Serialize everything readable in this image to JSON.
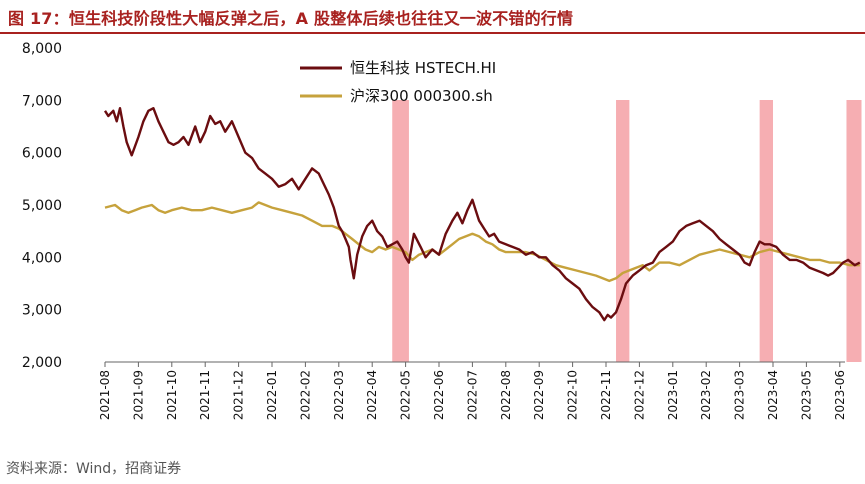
{
  "figure": {
    "title": "图 17：恒生科技阶段性大幅反弹之后，A 股整体后续也往往又一波不错的行情",
    "source": "资料来源：Wind，招商证券"
  },
  "colors": {
    "title": "#a8211f",
    "hstech": "#6b0d10",
    "csi300": "#c6a23c",
    "band": "#f4a0a4"
  },
  "chart_data": {
    "type": "line",
    "title": "",
    "xlabel": "",
    "ylabel": "",
    "ylim": [
      2000,
      8000
    ],
    "yticks": [
      2000,
      3000,
      4000,
      5000,
      6000,
      7000,
      8000
    ],
    "ytick_labels": [
      "2,000",
      "3,000",
      "4,000",
      "5,000",
      "6,000",
      "7,000",
      "8,000"
    ],
    "xlim": [
      0,
      22.7
    ],
    "xtick_labels": [
      "2021-08",
      "2021-09",
      "2021-10",
      "2021-11",
      "2021-12",
      "2022-01",
      "2022-02",
      "2022-03",
      "2022-04",
      "2022-05",
      "2022-06",
      "2022-07",
      "2022-08",
      "2022-09",
      "2022-10",
      "2022-11",
      "2022-12",
      "2023-01",
      "2023-02",
      "2023-03",
      "2023-04",
      "2023-05",
      "2023-06"
    ],
    "legend": {
      "position": "top-center"
    },
    "series": [
      {
        "name": "恒生科技 HSTECH.HI",
        "x": [
          0,
          0.1,
          0.25,
          0.35,
          0.45,
          0.55,
          0.65,
          0.8,
          1.0,
          1.15,
          1.3,
          1.45,
          1.6,
          1.75,
          1.9,
          2.05,
          2.2,
          2.35,
          2.5,
          2.7,
          2.85,
          3.0,
          3.15,
          3.3,
          3.45,
          3.6,
          3.8,
          4.0,
          4.2,
          4.4,
          4.6,
          4.8,
          5.0,
          5.2,
          5.4,
          5.6,
          5.8,
          6.0,
          6.2,
          6.4,
          6.55,
          6.7,
          6.85,
          7.0,
          7.1,
          7.2,
          7.3,
          7.35,
          7.45,
          7.55,
          7.7,
          7.85,
          8.0,
          8.15,
          8.3,
          8.45,
          8.6,
          8.75,
          8.9,
          9.0,
          9.1,
          9.25,
          9.45,
          9.6,
          9.8,
          10.0,
          10.2,
          10.4,
          10.55,
          10.7,
          10.85,
          11.0,
          11.1,
          11.2,
          11.35,
          11.5,
          11.65,
          11.8,
          12.0,
          12.2,
          12.4,
          12.6,
          12.8,
          13.0,
          13.2,
          13.4,
          13.6,
          13.8,
          14.0,
          14.2,
          14.4,
          14.6,
          14.8,
          14.95,
          15.05,
          15.15,
          15.3,
          15.45,
          15.6,
          15.8,
          16.0,
          16.2,
          16.4,
          16.6,
          16.8,
          17.0,
          17.2,
          17.4,
          17.6,
          17.8,
          18.0,
          18.2,
          18.4,
          18.6,
          18.8,
          19.0,
          19.15,
          19.3,
          19.45,
          19.6,
          19.75,
          19.9,
          20.1,
          20.3,
          20.5,
          20.7,
          20.9,
          21.1,
          21.3,
          21.5,
          21.65,
          21.8,
          21.95,
          22.1,
          22.25,
          22.45,
          22.6
        ],
        "values": [
          6800,
          6700,
          6800,
          6600,
          6850,
          6500,
          6200,
          5950,
          6300,
          6600,
          6800,
          6850,
          6600,
          6400,
          6200,
          6150,
          6200,
          6300,
          6150,
          6500,
          6200,
          6400,
          6700,
          6550,
          6600,
          6400,
          6600,
          6300,
          6000,
          5900,
          5700,
          5600,
          5500,
          5350,
          5400,
          5500,
          5300,
          5500,
          5700,
          5600,
          5400,
          5200,
          4950,
          4600,
          4500,
          4350,
          4200,
          3950,
          3600,
          4050,
          4400,
          4600,
          4700,
          4500,
          4400,
          4200,
          4250,
          4300,
          4150,
          4000,
          3900,
          4450,
          4200,
          4000,
          4150,
          4050,
          4450,
          4700,
          4850,
          4650,
          4900,
          5100,
          4900,
          4700,
          4550,
          4400,
          4450,
          4300,
          4250,
          4200,
          4150,
          4050,
          4100,
          4000,
          4000,
          3850,
          3750,
          3600,
          3500,
          3400,
          3200,
          3050,
          2950,
          2800,
          2900,
          2850,
          2950,
          3200,
          3500,
          3650,
          3750,
          3850,
          3900,
          4100,
          4200,
          4300,
          4500,
          4600,
          4650,
          4700,
          4600,
          4500,
          4350,
          4250,
          4150,
          4050,
          3900,
          3850,
          4100,
          4300,
          4250,
          4250,
          4200,
          4050,
          3950,
          3950,
          3900,
          3800,
          3750,
          3700,
          3650,
          3700,
          3800,
          3900,
          3950,
          3850,
          3900
        ]
      },
      {
        "name": "沪深300 000300.sh",
        "x": [
          0,
          0.3,
          0.5,
          0.7,
          0.9,
          1.1,
          1.4,
          1.6,
          1.8,
          2.0,
          2.3,
          2.6,
          2.9,
          3.2,
          3.5,
          3.8,
          4.1,
          4.4,
          4.6,
          4.8,
          5.0,
          5.3,
          5.6,
          5.9,
          6.2,
          6.5,
          6.8,
          7.0,
          7.2,
          7.4,
          7.6,
          7.8,
          8.0,
          8.2,
          8.4,
          8.6,
          8.8,
          9.0,
          9.2,
          9.4,
          9.6,
          9.8,
          10.0,
          10.2,
          10.4,
          10.6,
          10.8,
          11.0,
          11.2,
          11.4,
          11.6,
          11.8,
          12.0,
          12.3,
          12.6,
          12.9,
          13.2,
          13.5,
          13.8,
          14.1,
          14.4,
          14.7,
          14.9,
          15.1,
          15.3,
          15.5,
          15.7,
          15.9,
          16.1,
          16.3,
          16.6,
          16.9,
          17.2,
          17.5,
          17.8,
          18.1,
          18.4,
          18.7,
          19.0,
          19.3,
          19.6,
          19.9,
          20.2,
          20.5,
          20.8,
          21.1,
          21.4,
          21.7,
          22.0,
          22.3,
          22.6
        ],
        "values": [
          4950,
          5000,
          4900,
          4850,
          4900,
          4950,
          5000,
          4900,
          4850,
          4900,
          4950,
          4900,
          4900,
          4950,
          4900,
          4850,
          4900,
          4950,
          5050,
          5000,
          4950,
          4900,
          4850,
          4800,
          4700,
          4600,
          4600,
          4550,
          4450,
          4350,
          4250,
          4150,
          4100,
          4200,
          4150,
          4200,
          4150,
          4100,
          3950,
          4050,
          4100,
          4150,
          4050,
          4150,
          4250,
          4350,
          4400,
          4450,
          4400,
          4300,
          4250,
          4150,
          4100,
          4100,
          4100,
          4050,
          3950,
          3850,
          3800,
          3750,
          3700,
          3650,
          3600,
          3550,
          3600,
          3700,
          3750,
          3800,
          3850,
          3750,
          3900,
          3900,
          3850,
          3950,
          4050,
          4100,
          4150,
          4100,
          4050,
          4000,
          4100,
          4150,
          4100,
          4050,
          4000,
          3950,
          3950,
          3900,
          3900,
          3850,
          3850
        ]
      }
    ],
    "highlight_ranges": [
      [
        8.6,
        9.1
      ],
      [
        15.3,
        15.7
      ],
      [
        19.6,
        20.0
      ],
      [
        22.2,
        22.65
      ]
    ]
  }
}
